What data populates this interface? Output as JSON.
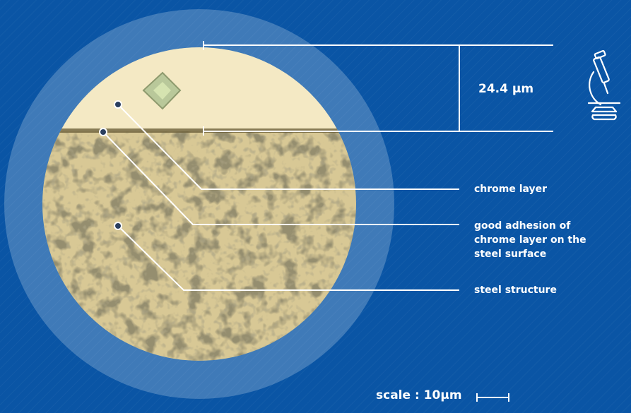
{
  "measurement": {
    "thickness": "24.4 µm"
  },
  "callouts": {
    "chrome_layer": "chrome layer",
    "adhesion": "good adhesion of\nchrome layer on the\nsteel surface",
    "steel_structure": "steel structure"
  },
  "scale": {
    "label": "scale : 10µm"
  },
  "icons": {
    "microscope": "microscope-icon"
  },
  "colors": {
    "background": "#0a55a5",
    "chrome": "#f4e9c4",
    "steel_dark": "#5b5031",
    "lines": "#ffffff"
  }
}
